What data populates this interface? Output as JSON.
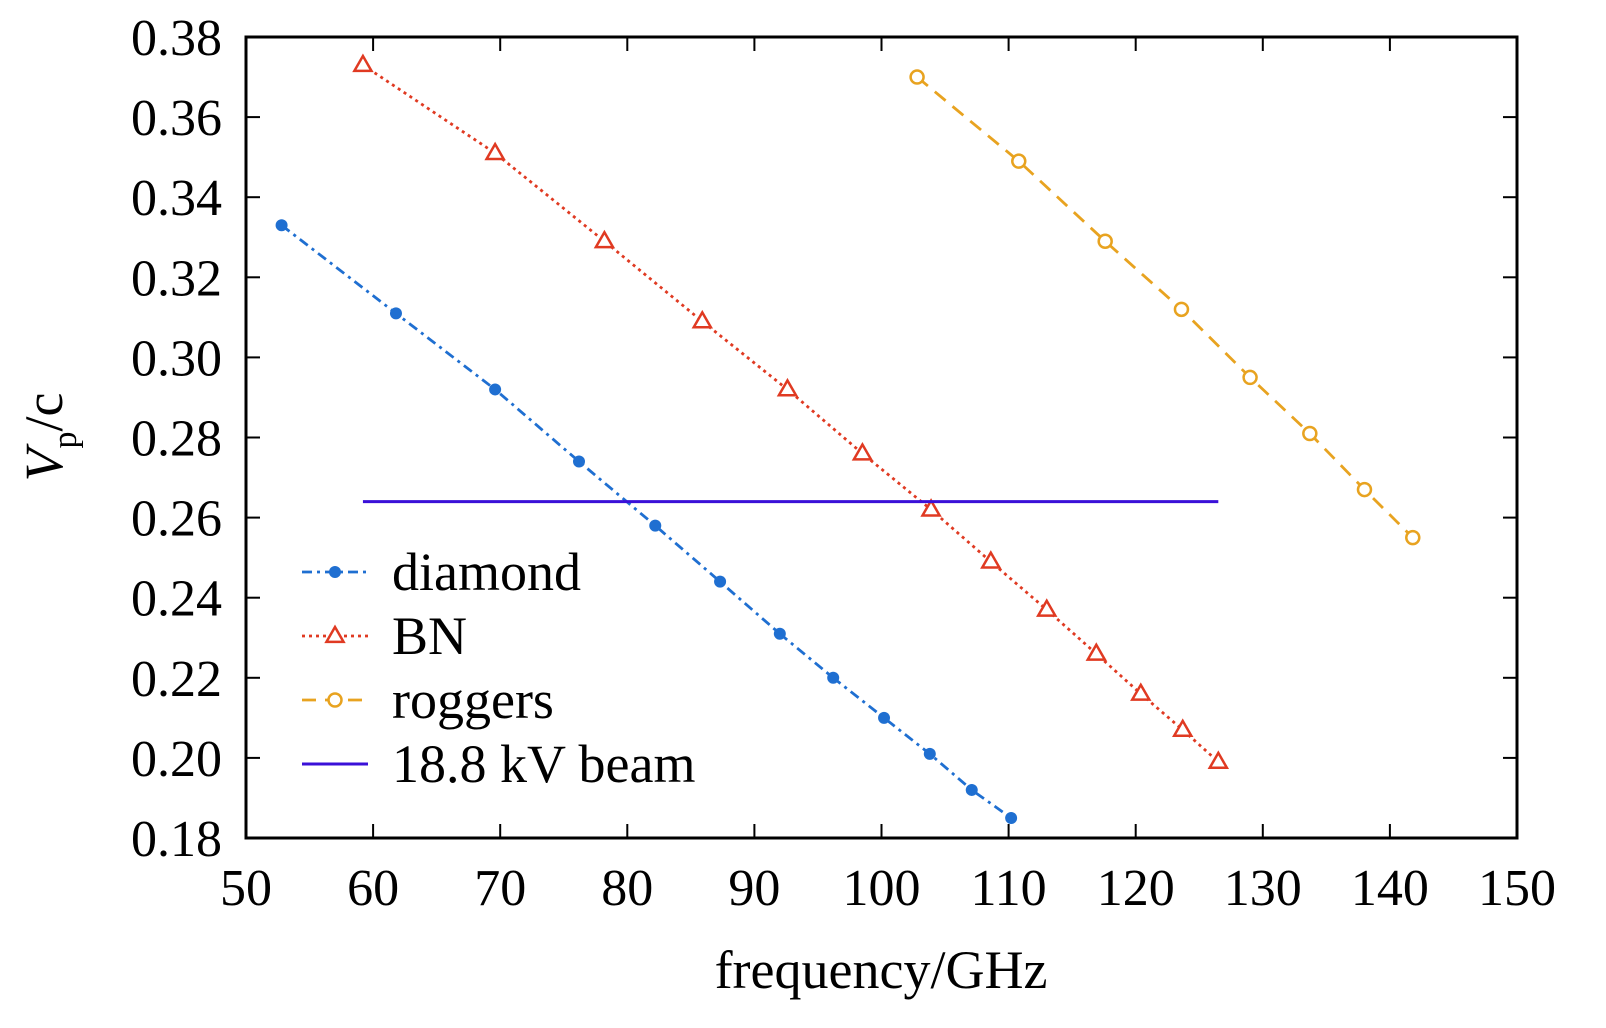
{
  "chart_data": {
    "type": "line",
    "title": "",
    "xlabel": "frequency/GHz",
    "ylabel": {
      "main": "V",
      "sub": "p",
      "rest": "/c"
    },
    "xlim": [
      50,
      150
    ],
    "ylim": [
      0.18,
      0.38
    ],
    "xticks": [
      "50",
      "60",
      "70",
      "80",
      "90",
      "100",
      "110",
      "120",
      "130",
      "140",
      "150"
    ],
    "yticks": [
      "0.18",
      "0.20",
      "0.22",
      "0.24",
      "0.26",
      "0.28",
      "0.30",
      "0.32",
      "0.34",
      "0.36",
      "0.38"
    ],
    "grid": false,
    "legend_position": "bottom-left",
    "series": [
      {
        "name": "diamond",
        "color": "#1f6fd1",
        "line_style": "dash-dot",
        "marker": "filled-circle",
        "x": [
          52.8,
          61.8,
          69.6,
          76.2,
          82.2,
          87.3,
          92.0,
          96.2,
          100.2,
          103.8,
          107.1,
          110.2
        ],
        "y": [
          0.333,
          0.311,
          0.292,
          0.274,
          0.258,
          0.244,
          0.231,
          0.22,
          0.21,
          0.201,
          0.192,
          0.185
        ]
      },
      {
        "name": "BN",
        "color": "#e03a22",
        "line_style": "dotted",
        "marker": "open-triangle",
        "x": [
          59.2,
          69.6,
          78.2,
          85.9,
          92.6,
          98.5,
          103.9,
          108.6,
          113.0,
          116.9,
          120.4,
          123.7,
          126.5
        ],
        "y": [
          0.373,
          0.351,
          0.329,
          0.309,
          0.292,
          0.276,
          0.262,
          0.249,
          0.237,
          0.226,
          0.216,
          0.207,
          0.199
        ]
      },
      {
        "name": "roggers",
        "color": "#e8a320",
        "line_style": "dashed",
        "marker": "open-circle",
        "x": [
          102.8,
          110.8,
          117.6,
          123.6,
          129.0,
          133.7,
          138.0,
          141.8
        ],
        "y": [
          0.37,
          0.349,
          0.329,
          0.312,
          0.295,
          0.281,
          0.267,
          0.255
        ]
      },
      {
        "name": "18.8 kV beam",
        "color": "#3a10d8",
        "line_style": "solid",
        "marker": "none",
        "x": [
          59.2,
          126.5
        ],
        "y": [
          0.264,
          0.264
        ]
      }
    ]
  }
}
